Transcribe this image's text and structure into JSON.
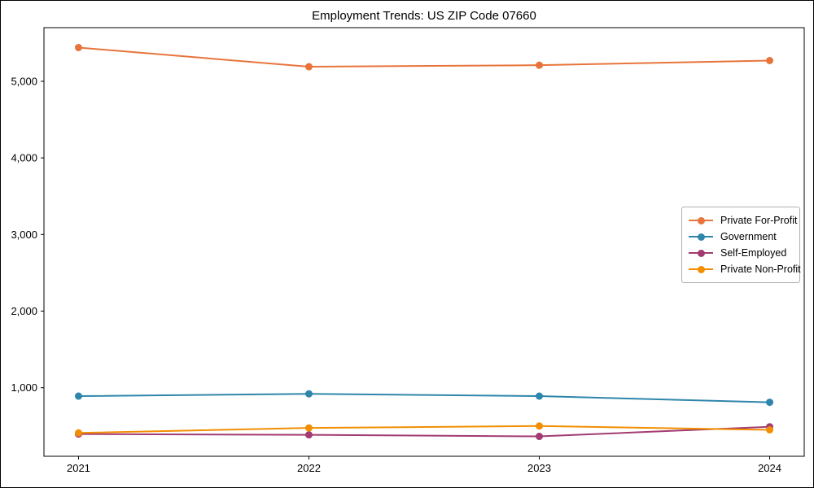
{
  "figure": {
    "background": "#ffffff",
    "border_color": "#000000",
    "text_color": "#000000",
    "spine_color": "#000000",
    "legend_border_color": "#b0b0b0"
  },
  "chart_data": {
    "type": "line",
    "title": "Employment Trends: US ZIP Code 07660",
    "xlabel": "",
    "ylabel": "",
    "x": [
      2021,
      2022,
      2023,
      2024
    ],
    "x_tick_labels": [
      "2021",
      "2022",
      "2023",
      "2024"
    ],
    "y_ticks": [
      1000,
      2000,
      3000,
      4000,
      5000
    ],
    "y_tick_labels": [
      "1,000",
      "2,000",
      "3,000",
      "4,000",
      "5,000"
    ],
    "xlim": [
      2020.85,
      2024.15
    ],
    "ylim": [
      105,
      5700
    ],
    "grid": false,
    "legend_position": "center right",
    "marker": "circle",
    "series": [
      {
        "name": "Private For-Profit",
        "color": "#E8743B",
        "values": [
          5440,
          5190,
          5210,
          5270
        ]
      },
      {
        "name": "Government",
        "color": "#2E86AB",
        "values": [
          890,
          920,
          890,
          810
        ]
      },
      {
        "name": "Self-Employed",
        "color": "#A23B72",
        "values": [
          395,
          385,
          365,
          490
        ]
      },
      {
        "name": "Private Non-Profit",
        "color": "#F18F01",
        "values": [
          410,
          475,
          500,
          450
        ]
      }
    ]
  }
}
